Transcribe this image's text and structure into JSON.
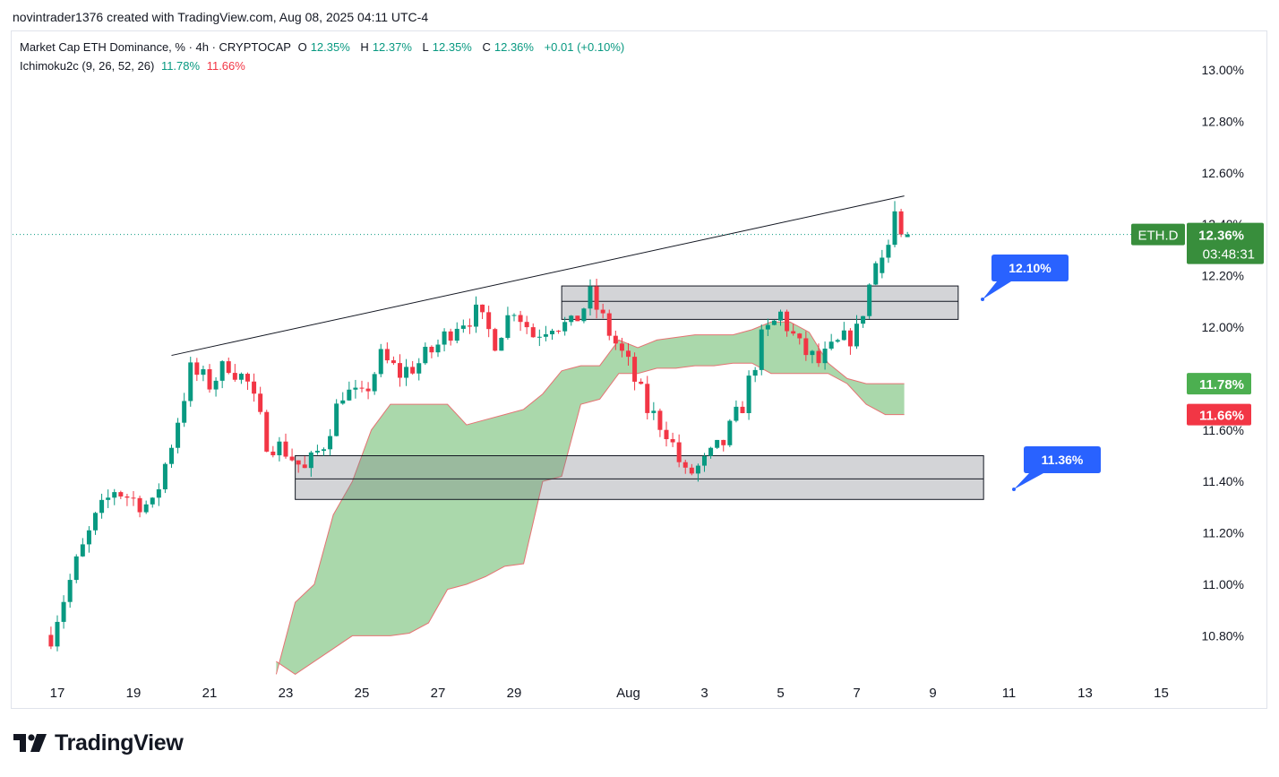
{
  "credit": "novintrader1376 created with TradingView.com, Aug 08, 2025 04:11 UTC-4",
  "legend": {
    "symbol": "Market Cap ETH Dominance, % · 4h · CRYPTOCAP",
    "o_label": "O",
    "o": "12.35%",
    "h_label": "H",
    "h": "12.37%",
    "l_label": "L",
    "l": "12.35%",
    "c_label": "C",
    "c": "12.36%",
    "change": "+0.01 (+0.10%)",
    "indicator": "Ichimoku2c (9, 26, 52, 26)",
    "ind_val1": "11.78%",
    "ind_val2": "11.66%"
  },
  "brand": "TradingView",
  "colors": {
    "up": "#089981",
    "down": "#f23645",
    "cloud": "#a5d6a7",
    "cloud_edge": "#e57373",
    "zone": "#d1d4dc",
    "tag_blue": "#2962ff",
    "price_tag": "#388e3c",
    "ma_tag": "#4caf50",
    "red_tag": "#f23645"
  },
  "chart_data": {
    "type": "candlestick",
    "title": "Market Cap ETH Dominance, % · 4h · CRYPTOCAP",
    "y_range": [
      10.7,
      13.1
    ],
    "y_ticks": [
      "13.00%",
      "12.80%",
      "12.60%",
      "12.40%",
      "12.20%",
      "12.00%",
      "11.80%",
      "11.60%",
      "11.40%",
      "11.20%",
      "11.00%",
      "10.80%"
    ],
    "x_ticks": [
      "17",
      "19",
      "21",
      "23",
      "25",
      "27",
      "29",
      "Aug",
      "3",
      "5",
      "7",
      "9",
      "11",
      "13",
      "15"
    ],
    "current_price": {
      "symbol": "ETH.D",
      "value": "12.36%",
      "countdown": "03:48:31"
    },
    "indicator_tags": [
      "11.78%",
      "11.66%"
    ],
    "zones": [
      {
        "top": 12.16,
        "mid": 12.1,
        "bottom": 12.03,
        "start": "Jul 30",
        "end": "Aug 9"
      },
      {
        "top": 11.5,
        "mid": 11.41,
        "bottom": 11.33,
        "start": "Jul 23",
        "end": "Aug 10"
      }
    ],
    "annotations": [
      "12.10%",
      "11.36%"
    ],
    "trendline": [
      {
        "date": "Jul 20",
        "value": 11.89
      },
      {
        "date": "Aug 8",
        "value": 12.51
      }
    ],
    "price_path": [
      [
        "Jul 16 12:00",
        10.65
      ],
      [
        "Jul 17 00:00",
        10.88
      ],
      [
        "Jul 17 12:00",
        11.08
      ],
      [
        "Jul 18 00:00",
        11.25
      ],
      [
        "Jul 18 12:00",
        11.37
      ],
      [
        "Jul 19 00:00",
        11.33
      ],
      [
        "Jul 19 12:00",
        11.3
      ],
      [
        "Jul 20 00:00",
        11.55
      ],
      [
        "Jul 20 12:00",
        11.83
      ],
      [
        "Jul 21 00:00",
        11.78
      ],
      [
        "Jul 21 12:00",
        11.86
      ],
      [
        "Jul 22 00:00",
        11.78
      ],
      [
        "Jul 22 12:00",
        11.56
      ],
      [
        "Jul 23 00:00",
        11.52
      ],
      [
        "Jul 23 12:00",
        11.44
      ],
      [
        "Jul 24 00:00",
        11.55
      ],
      [
        "Jul 24 12:00",
        11.75
      ],
      [
        "Jul 25 00:00",
        11.72
      ],
      [
        "Jul 25 12:00",
        11.88
      ],
      [
        "Jul 26 00:00",
        11.82
      ],
      [
        "Jul 26 12:00",
        11.86
      ],
      [
        "Jul 27 00:00",
        11.93
      ],
      [
        "Jul 27 12:00",
        12.02
      ],
      [
        "Jul 28 00:00",
        12.05
      ],
      [
        "Jul 28 12:00",
        11.95
      ],
      [
        "Jul 29 00:00",
        12.08
      ],
      [
        "Jul 29 12:00",
        11.97
      ],
      [
        "Jul 30 00:00",
        12.02
      ],
      [
        "Jul 30 12:00",
        12.0
      ],
      [
        "Jul 31 00:00",
        12.12
      ],
      [
        "Jul 31 12:00",
        11.98
      ],
      [
        "Aug 1 00:00",
        11.85
      ],
      [
        "Aug 1 12:00",
        11.68
      ],
      [
        "Aug 2 00:00",
        11.6
      ],
      [
        "Aug 2 12:00",
        11.42
      ],
      [
        "Aug 3 00:00",
        11.47
      ],
      [
        "Aug 3 12:00",
        11.55
      ],
      [
        "Aug 4 00:00",
        11.7
      ],
      [
        "Aug 4 12:00",
        11.95
      ],
      [
        "Aug 5 00:00",
        12.05
      ],
      [
        "Aug 5 12:00",
        11.92
      ],
      [
        "Aug 6 00:00",
        11.86
      ],
      [
        "Aug 6 12:00",
        11.93
      ],
      [
        "Aug 7 00:00",
        11.98
      ],
      [
        "Aug 7 12:00",
        12.25
      ],
      [
        "Aug 8 00:00",
        12.36
      ]
    ],
    "cloud": [
      [
        "Jul 22 18:00",
        10.65,
        10.7
      ],
      [
        "Jul 23 06:00",
        10.93,
        10.65
      ],
      [
        "Jul 23 18:00",
        11.0,
        10.7
      ],
      [
        "Jul 24 06:00",
        11.27,
        10.75
      ],
      [
        "Jul 24 18:00",
        11.4,
        10.8
      ],
      [
        "Jul 25 06:00",
        11.6,
        10.8
      ],
      [
        "Jul 25 18:00",
        11.7,
        10.8
      ],
      [
        "Jul 26 06:00",
        11.7,
        10.81
      ],
      [
        "Jul 26 18:00",
        11.7,
        10.85
      ],
      [
        "Jul 27 06:00",
        11.7,
        10.98
      ],
      [
        "Jul 27 18:00",
        11.62,
        11.0
      ],
      [
        "Jul 28 06:00",
        11.64,
        11.03
      ],
      [
        "Jul 28 18:00",
        11.66,
        11.07
      ],
      [
        "Jul 29 06:00",
        11.68,
        11.08
      ],
      [
        "Jul 29 18:00",
        11.74,
        11.4
      ],
      [
        "Jul 30 06:00",
        11.83,
        11.42
      ],
      [
        "Jul 30 18:00",
        11.85,
        11.7
      ],
      [
        "Jul 31 06:00",
        11.85,
        11.72
      ],
      [
        "Jul 31 18:00",
        11.95,
        11.82
      ],
      [
        "Aug 1 06:00",
        11.92,
        11.82
      ],
      [
        "Aug 1 18:00",
        11.95,
        11.84
      ],
      [
        "Aug 2 06:00",
        11.96,
        11.84
      ],
      [
        "Aug 2 18:00",
        11.97,
        11.85
      ],
      [
        "Aug 3 06:00",
        11.97,
        11.85
      ],
      [
        "Aug 3 18:00",
        11.97,
        11.86
      ],
      [
        "Aug 4 06:00",
        11.99,
        11.86
      ],
      [
        "Aug 4 18:00",
        12.02,
        11.82
      ],
      [
        "Aug 5 06:00",
        12.02,
        11.82
      ],
      [
        "Aug 5 18:00",
        11.98,
        11.82
      ],
      [
        "Aug 6 06:00",
        11.86,
        11.82
      ],
      [
        "Aug 6 18:00",
        11.8,
        11.78
      ],
      [
        "Aug 7 06:00",
        11.78,
        11.7
      ],
      [
        "Aug 7 18:00",
        11.78,
        11.66
      ],
      [
        "Aug 8 06:00",
        11.78,
        11.66
      ]
    ]
  }
}
